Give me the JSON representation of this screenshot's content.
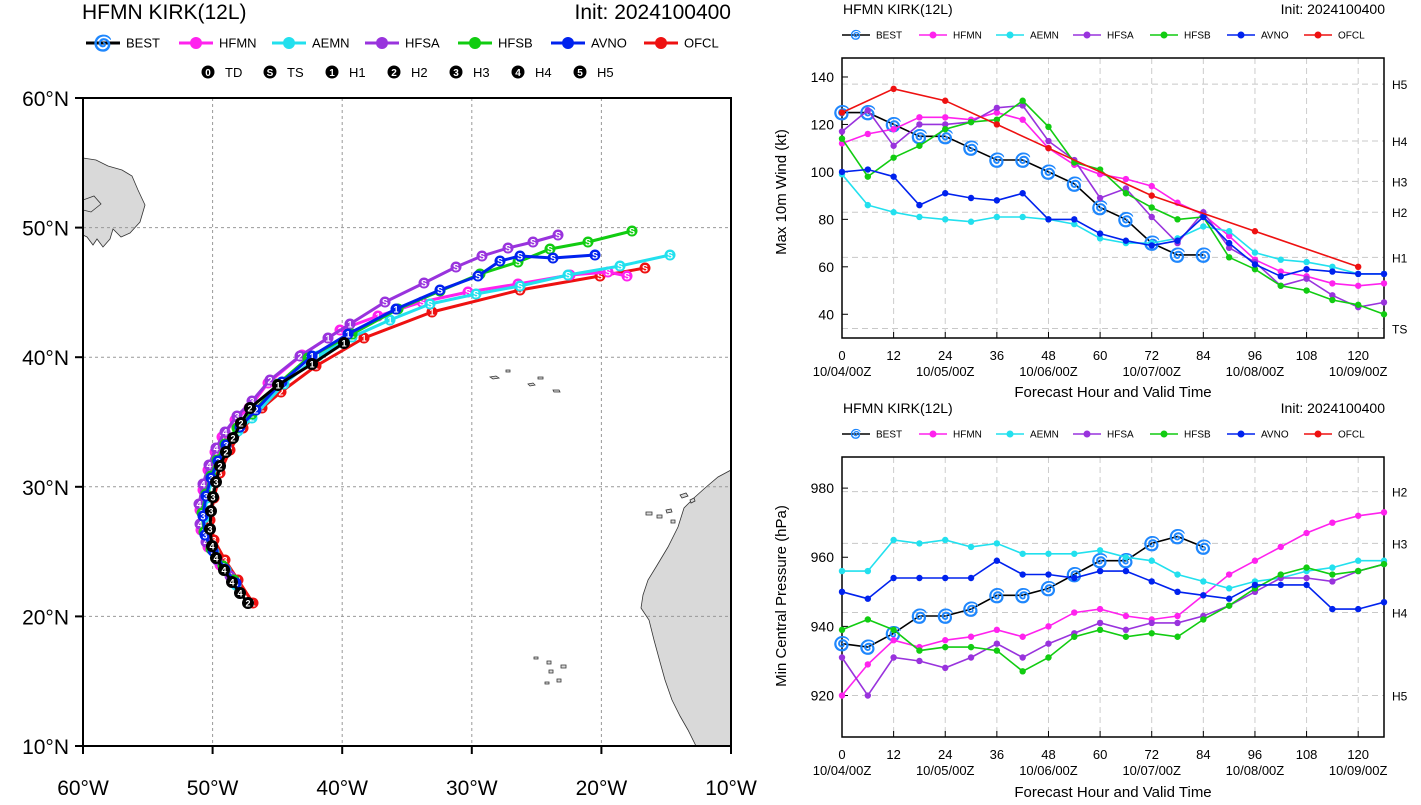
{
  "colors": {
    "BEST": "#000000",
    "HFMN": "#ff22ee",
    "AEMN": "#22e0ee",
    "HFSA": "#9933dd",
    "HFSB": "#11cc11",
    "AVNO": "#0022ee",
    "OFCL": "#ee1111",
    "land": "#d9d9d9",
    "grid": "#aaaaaa"
  },
  "legend_models": [
    "BEST",
    "HFMN",
    "AEMN",
    "HFSA",
    "HFSB",
    "AVNO",
    "OFCL"
  ],
  "map": {
    "title": "HFMN KIRK(12L)",
    "init": "Init: 2024100400",
    "intensity_legend": [
      {
        "symbol": "0",
        "label": "TD"
      },
      {
        "symbol": "S",
        "label": "TS"
      },
      {
        "symbol": "1",
        "label": "H1"
      },
      {
        "symbol": "2",
        "label": "H2"
      },
      {
        "symbol": "3",
        "label": "H3"
      },
      {
        "symbol": "4",
        "label": "H4"
      },
      {
        "symbol": "5",
        "label": "H5"
      }
    ],
    "lat_ticks": [
      "60°N",
      "50°N",
      "40°N",
      "30°N",
      "20°N",
      "10°N"
    ],
    "lon_ticks": [
      "60°W",
      "50°W",
      "40°W",
      "30°W",
      "20°W",
      "10°W"
    ]
  },
  "chart_data": [
    {
      "type": "line",
      "title": "HFMN KIRK(12L)",
      "init": "Init: 2024100400",
      "xlabel": "Forecast Hour and Valid Time",
      "ylabel": "Max 10m Wind (kt)",
      "x_ticks": [
        0,
        12,
        24,
        36,
        48,
        60,
        72,
        84,
        96,
        108,
        120
      ],
      "date_ticks": [
        {
          "x": 0,
          "label": "10/04/00Z"
        },
        {
          "x": 24,
          "label": "10/05/00Z"
        },
        {
          "x": 48,
          "label": "10/06/00Z"
        },
        {
          "x": 72,
          "label": "10/07/00Z"
        },
        {
          "x": 96,
          "label": "10/08/00Z"
        },
        {
          "x": 120,
          "label": "10/09/00Z"
        }
      ],
      "xlim": [
        0,
        126
      ],
      "ylim": [
        30,
        148
      ],
      "y_ticks": [
        40,
        60,
        80,
        100,
        120,
        140
      ],
      "category_lines": [
        {
          "value": 137,
          "label": "H5"
        },
        {
          "value": 113,
          "label": "H4"
        },
        {
          "value": 96,
          "label": "H3"
        },
        {
          "value": 83,
          "label": "H2"
        },
        {
          "value": 64,
          "label": "H1"
        },
        {
          "value": 34,
          "label": "TS"
        }
      ],
      "series": [
        {
          "name": "BEST",
          "x": [
            0,
            6,
            12,
            18,
            24,
            30,
            36,
            42,
            48,
            54,
            60,
            66,
            72,
            78,
            84
          ],
          "values": [
            125,
            125,
            120,
            115,
            115,
            110,
            105,
            105,
            100,
            95,
            85,
            80,
            70,
            65,
            65
          ]
        },
        {
          "name": "HFMN",
          "x": [
            0,
            6,
            12,
            18,
            24,
            30,
            36,
            42,
            48,
            54,
            60,
            66,
            72,
            78,
            84,
            90,
            96,
            102,
            108,
            114,
            120,
            126
          ],
          "values": [
            112,
            116,
            118,
            123,
            123,
            122,
            125,
            122,
            110,
            103,
            99,
            97,
            94,
            87,
            82,
            73,
            63,
            58,
            56,
            53,
            52,
            53
          ]
        },
        {
          "name": "AEMN",
          "x": [
            0,
            6,
            12,
            18,
            24,
            30,
            36,
            42,
            48,
            54,
            60,
            66,
            72,
            78,
            84,
            90,
            96,
            102,
            108,
            114,
            120,
            126
          ],
          "values": [
            99,
            86,
            83,
            81,
            80,
            79,
            81,
            81,
            80,
            78,
            72,
            70,
            70,
            72,
            77,
            75,
            66,
            63,
            62,
            60,
            57,
            57
          ]
        },
        {
          "name": "HFSA",
          "x": [
            0,
            6,
            12,
            18,
            24,
            30,
            36,
            42,
            48,
            54,
            60,
            66,
            72,
            78,
            84,
            90,
            96,
            102,
            108,
            114,
            120,
            126
          ],
          "values": [
            117,
            126,
            111,
            120,
            120,
            121,
            127,
            128,
            113,
            105,
            89,
            93,
            81,
            70,
            83,
            68,
            62,
            52,
            55,
            48,
            43,
            45
          ]
        },
        {
          "name": "HFSB",
          "x": [
            0,
            6,
            12,
            18,
            24,
            30,
            36,
            42,
            48,
            54,
            60,
            66,
            72,
            78,
            84,
            90,
            96,
            102,
            108,
            114,
            120,
            126
          ],
          "values": [
            114,
            98,
            106,
            111,
            118,
            121,
            122,
            130,
            119,
            104,
            101,
            91,
            85,
            80,
            81,
            64,
            59,
            52,
            50,
            46,
            44,
            40
          ]
        },
        {
          "name": "AVNO",
          "x": [
            0,
            6,
            12,
            18,
            24,
            30,
            36,
            42,
            48,
            54,
            60,
            66,
            72,
            78,
            84,
            90,
            96,
            102,
            108,
            114,
            120,
            126
          ],
          "values": [
            100,
            101,
            98,
            86,
            91,
            89,
            88,
            91,
            80,
            80,
            74,
            71,
            69,
            71,
            81,
            70,
            61,
            56,
            59,
            58,
            57,
            57
          ]
        },
        {
          "name": "OFCL",
          "x": [
            0,
            12,
            24,
            36,
            48,
            72,
            96,
            120
          ],
          "values": [
            125,
            135,
            130,
            120,
            110,
            90,
            75,
            60
          ]
        }
      ]
    },
    {
      "type": "line",
      "title": "HFMN KIRK(12L)",
      "init": "Init: 2024100400",
      "xlabel": "Forecast Hour and Valid Time",
      "ylabel": "Min Central Pressure (hPa)",
      "x_ticks": [
        0,
        12,
        24,
        36,
        48,
        60,
        72,
        84,
        96,
        108,
        120
      ],
      "date_ticks": [
        {
          "x": 0,
          "label": "10/04/00Z"
        },
        {
          "x": 24,
          "label": "10/05/00Z"
        },
        {
          "x": 48,
          "label": "10/06/00Z"
        },
        {
          "x": 72,
          "label": "10/07/00Z"
        },
        {
          "x": 96,
          "label": "10/08/00Z"
        },
        {
          "x": 120,
          "label": "10/09/00Z"
        }
      ],
      "xlim": [
        0,
        126
      ],
      "ylim": [
        908,
        989
      ],
      "y_ticks": [
        920,
        940,
        960,
        980
      ],
      "category_lines": [
        {
          "value": 979,
          "label": "H2"
        },
        {
          "value": 964,
          "label": "H3"
        },
        {
          "value": 944,
          "label": "H4"
        },
        {
          "value": 920,
          "label": "H5"
        }
      ],
      "series": [
        {
          "name": "BEST",
          "x": [
            0,
            6,
            12,
            18,
            24,
            30,
            36,
            42,
            48,
            54,
            60,
            66,
            72,
            78,
            84
          ],
          "values": [
            935,
            934,
            938,
            943,
            943,
            945,
            949,
            949,
            951,
            955,
            959,
            959,
            964,
            966,
            963
          ]
        },
        {
          "name": "HFMN",
          "x": [
            0,
            6,
            12,
            18,
            24,
            30,
            36,
            42,
            48,
            54,
            60,
            66,
            72,
            78,
            84,
            90,
            96,
            102,
            108,
            114,
            120,
            126
          ],
          "values": [
            920,
            929,
            936,
            934,
            936,
            937,
            939,
            937,
            940,
            944,
            945,
            943,
            942,
            943,
            949,
            955,
            959,
            963,
            967,
            970,
            972,
            973
          ]
        },
        {
          "name": "AEMN",
          "x": [
            0,
            6,
            12,
            18,
            24,
            30,
            36,
            42,
            48,
            54,
            60,
            66,
            72,
            78,
            84,
            90,
            96,
            102,
            108,
            114,
            120,
            126
          ],
          "values": [
            956,
            956,
            965,
            964,
            965,
            963,
            964,
            961,
            961,
            961,
            962,
            960,
            959,
            955,
            953,
            951,
            953,
            954,
            956,
            957,
            959,
            959
          ]
        },
        {
          "name": "HFSA",
          "x": [
            0,
            6,
            12,
            18,
            24,
            30,
            36,
            42,
            48,
            54,
            60,
            66,
            72,
            78,
            84,
            90,
            96,
            102,
            108,
            114,
            120,
            126
          ],
          "values": [
            931,
            920,
            931,
            930,
            928,
            931,
            935,
            931,
            935,
            938,
            941,
            939,
            941,
            941,
            943,
            946,
            950,
            954,
            954,
            953,
            956,
            958
          ]
        },
        {
          "name": "HFSB",
          "x": [
            0,
            6,
            12,
            18,
            24,
            30,
            36,
            42,
            48,
            54,
            60,
            66,
            72,
            78,
            84,
            90,
            96,
            102,
            108,
            114,
            120,
            126
          ],
          "values": [
            939,
            942,
            939,
            933,
            934,
            934,
            933,
            927,
            931,
            937,
            939,
            937,
            938,
            937,
            942,
            946,
            951,
            955,
            957,
            955,
            956,
            958
          ]
        },
        {
          "name": "AVNO",
          "x": [
            0,
            6,
            12,
            18,
            24,
            30,
            36,
            42,
            48,
            54,
            60,
            66,
            72,
            78,
            84,
            90,
            96,
            102,
            108,
            114,
            120,
            126
          ],
          "values": [
            950,
            948,
            954,
            954,
            954,
            954,
            959,
            955,
            955,
            954,
            956,
            956,
            953,
            950,
            949,
            948,
            952,
            952,
            952,
            945,
            945,
            947
          ]
        }
      ]
    }
  ]
}
